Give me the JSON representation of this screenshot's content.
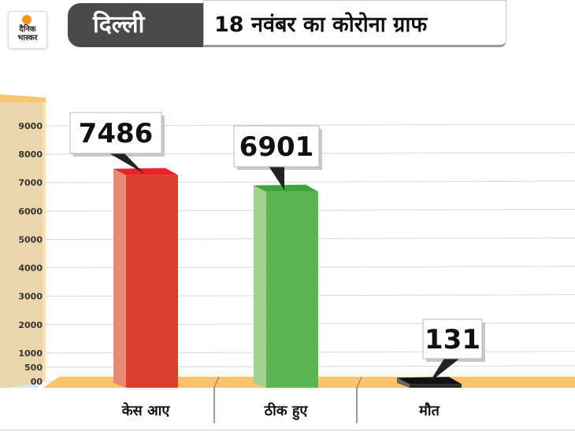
{
  "header": {
    "logo_line1": "दैनिक",
    "logo_line2": "भास्कर",
    "city": "दिल्ली",
    "title": "18 नवंबर का कोरोना ग्राफ"
  },
  "chart_data": {
    "type": "bar",
    "title": "18 नवंबर का कोरोना ग्राफ",
    "categories": [
      "केस आए",
      "ठीक हुए",
      "मौत"
    ],
    "values": [
      7486,
      6901,
      131
    ],
    "value_labels": [
      "7486",
      "6901",
      "131"
    ],
    "yticks": [
      0,
      500,
      1000,
      2000,
      3000,
      4000,
      5000,
      6000,
      7000,
      8000,
      9000
    ],
    "ytick_labels": [
      "00",
      "500",
      "1000",
      "2000",
      "3000",
      "4000",
      "5000",
      "6000",
      "7000",
      "8000",
      "9000"
    ],
    "ylim": [
      0,
      9000
    ],
    "grid": true,
    "colors": {
      "bars": [
        "#d9412f",
        "#5bb552",
        "#2b2b2b"
      ],
      "bars_side": [
        "#e58a74",
        "#9fd28f",
        "#666666"
      ],
      "bars_top": [
        "#e8232a",
        "#3ea33a",
        "#111111"
      ],
      "floor": "#fbc46a",
      "axis_panel": "#f7c774",
      "back_panel": "#dce6f0"
    }
  }
}
